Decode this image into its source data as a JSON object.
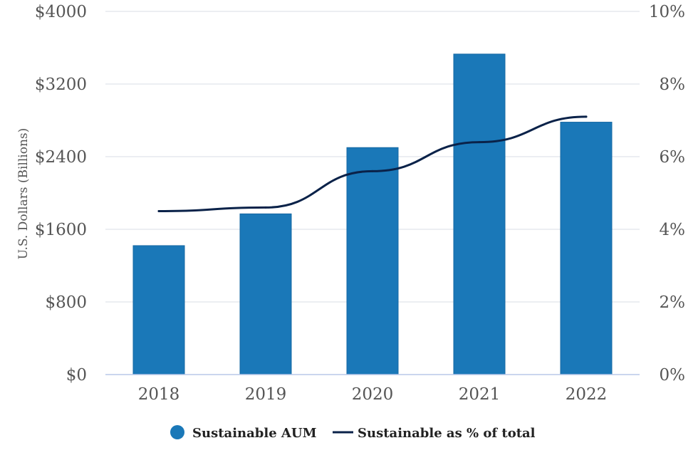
{
  "chart_data": {
    "type": "bar",
    "categories": [
      "2018",
      "2019",
      "2020",
      "2021",
      "2022"
    ],
    "series": [
      {
        "name": "Sustainable AUM",
        "type": "bar",
        "axis": "left",
        "color": "#1a78b8",
        "values": [
          1420,
          1770,
          2500,
          3530,
          2780
        ]
      },
      {
        "name": "Sustainable as % of total",
        "type": "line",
        "axis": "right",
        "color": "#0a2249",
        "values": [
          4.5,
          4.6,
          5.6,
          6.4,
          7.1
        ]
      }
    ],
    "ylabel": "U.S. Dollars (Billions)",
    "ylim": [
      0,
      4000
    ],
    "yticks": [
      "$0",
      "$800",
      "$1600",
      "$2400",
      "$3200",
      "$4000"
    ],
    "y2lim": [
      0,
      10
    ],
    "y2ticks": [
      "0%",
      "2%",
      "4%",
      "6%",
      "8%",
      "10%"
    ],
    "grid": true,
    "legend": "bottom-center"
  }
}
